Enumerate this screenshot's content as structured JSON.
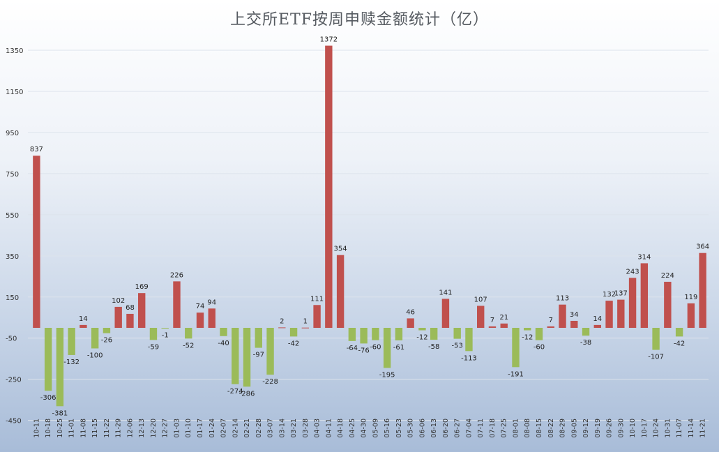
{
  "chart_data": {
    "type": "bar",
    "title": "上交所ETF按周申赎金额统计（亿）",
    "xlabel": "",
    "ylabel": "",
    "ylim": [
      -450,
      1450
    ],
    "yticks": [
      1350,
      1150,
      950,
      750,
      550,
      350,
      150,
      -50,
      -250,
      -450
    ],
    "grid": true,
    "legend": "none",
    "colors": {
      "positive": "#c0504d",
      "negative": "#9bbb59"
    },
    "categories": [
      "10-11",
      "10-18",
      "10-25",
      "11-01",
      "11-08",
      "11-15",
      "11-22",
      "11-29",
      "12-06",
      "12-13",
      "12-20",
      "12-27",
      "01-03",
      "01-10",
      "01-17",
      "01-24",
      "02-07",
      "02-14",
      "02-21",
      "02-28",
      "03-07",
      "03-14",
      "03-21",
      "03-28",
      "04-03",
      "04-11",
      "04-18",
      "04-25",
      "04-30",
      "05-09",
      "05-16",
      "05-23",
      "05-30",
      "06-06",
      "06-13",
      "06-20",
      "06-27",
      "07-04",
      "07-11",
      "07-18",
      "07-25",
      "08-01",
      "08-08",
      "08-15",
      "08-22",
      "08-29",
      "09-05",
      "09-12",
      "09-19",
      "09-26",
      "09-30",
      "10-10",
      "10-17",
      "10-24",
      "10-31",
      "11-07",
      "11-14",
      "11-21"
    ],
    "values": [
      837,
      -306,
      -381,
      -132,
      14,
      -100,
      -26,
      102,
      68,
      169,
      -59,
      -1,
      226,
      -52,
      74,
      94,
      -40,
      -274,
      -286,
      -97,
      -228,
      2,
      -42,
      1,
      111,
      1372,
      354,
      -64,
      -76,
      -60,
      -195,
      -61,
      46,
      -12,
      -58,
      141,
      -53,
      -113,
      107,
      7,
      21,
      -191,
      -12,
      -60,
      7,
      113,
      34,
      -38,
      14,
      132,
      137,
      243,
      314,
      -107,
      224,
      -42,
      119,
      364
    ]
  }
}
